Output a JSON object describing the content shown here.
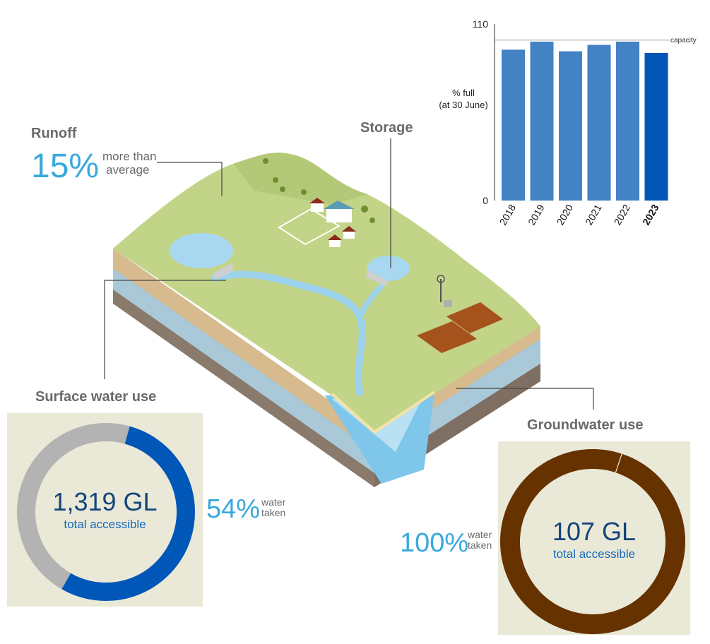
{
  "runoff": {
    "heading": "Runoff",
    "percent": "15%",
    "note_line1": "more than",
    "note_line2": "average"
  },
  "storage": {
    "heading": "Storage"
  },
  "surface_water": {
    "heading": "Surface water use",
    "total": "1,319 GL",
    "total_label": "total accessible",
    "percent": "54%",
    "note_line1": "water",
    "note_line2": "taken",
    "fraction_taken": 0.54,
    "colors": {
      "taken": "#0057b8",
      "remaining": "#b3b3b3"
    }
  },
  "groundwater": {
    "heading": "Groundwater use",
    "total": "107 GL",
    "total_label": "total accessible",
    "percent": "100%",
    "note_line1": "water",
    "note_line2": "taken",
    "fraction_taken": 1.0,
    "colors": {
      "taken": "#663300"
    }
  },
  "chart_data": {
    "type": "bar",
    "categories": [
      "2018",
      "2019",
      "2020",
      "2021",
      "2022",
      "2023"
    ],
    "values": [
      94,
      99,
      93,
      97,
      99,
      92
    ],
    "highlight_category": "2023",
    "ylim": [
      0,
      110
    ],
    "yticks": [
      "0",
      "110"
    ],
    "capacity_value": 100,
    "capacity_label": "capacity",
    "ylabel_line1": "% full",
    "ylabel_line2": "(at 30 June)",
    "colors": {
      "bar": "#4382c3",
      "highlight": "#0057b8"
    }
  }
}
